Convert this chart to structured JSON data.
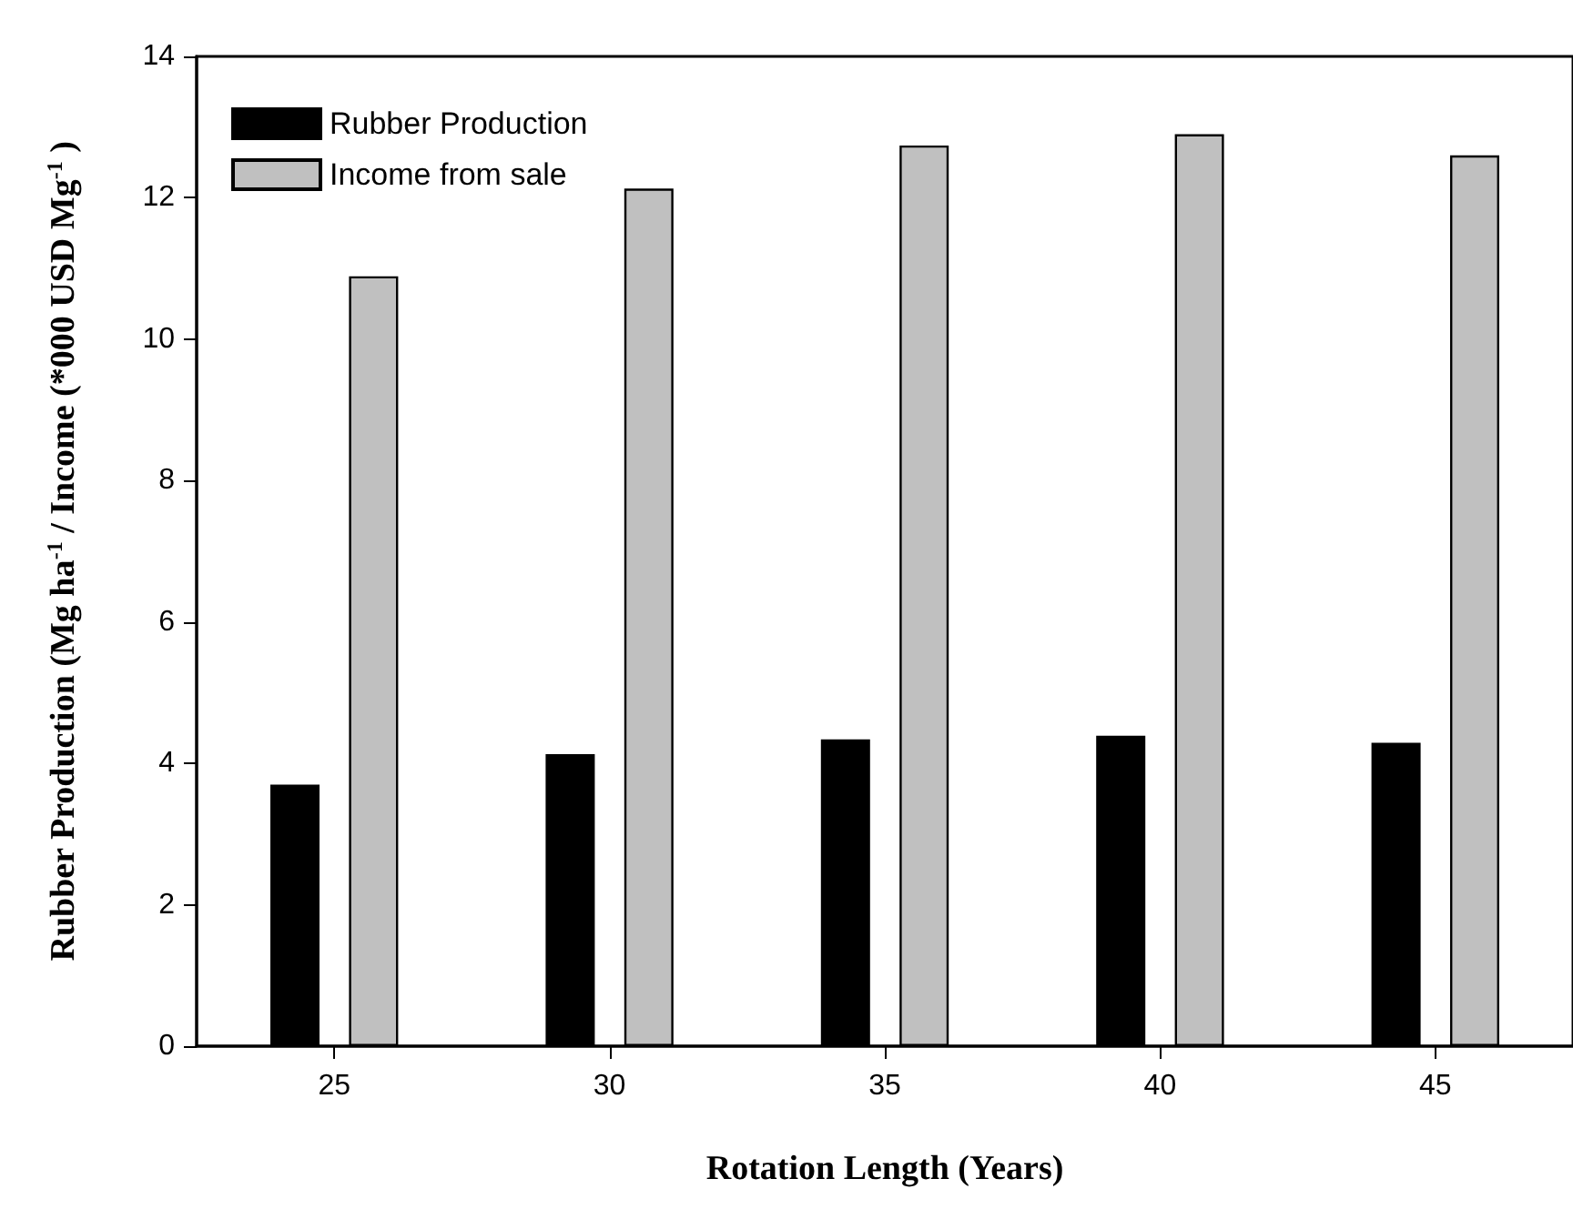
{
  "chart_data": {
    "type": "bar",
    "xlabel": "Rotation Length (Years)",
    "ylabel": "Rubber Production (Mg ha$^{-1}$ / Income (*000 USD Mg$^{-1}$ )",
    "categories": [
      "25",
      "30",
      "35",
      "40",
      "45"
    ],
    "series": [
      {
        "name": "Rubber Production",
        "color": "#000000",
        "values": [
          3.7,
          4.13,
          4.34,
          4.39,
          4.29
        ]
      },
      {
        "name": "Income from sale",
        "color": "#c0c0c0",
        "values": [
          10.89,
          12.13,
          12.74,
          12.9,
          12.6
        ]
      }
    ],
    "ylim": [
      0,
      14
    ],
    "yticks": [
      0,
      2,
      4,
      6,
      8,
      10,
      12,
      14
    ],
    "grid": false,
    "legend": "top left"
  }
}
